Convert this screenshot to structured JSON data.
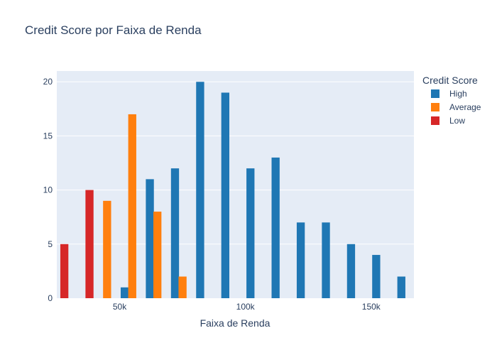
{
  "chart_data": {
    "type": "bar",
    "title": "Credit Score por Faixa de Renda",
    "xlabel": "Faixa de Renda",
    "ylabel": "",
    "legend_title": "Credit Score",
    "legend_position": "right",
    "grid": true,
    "xlim": [
      25000,
      167000
    ],
    "ylim": [
      0,
      21
    ],
    "xticks": [
      {
        "value": 50000,
        "label": "50k"
      },
      {
        "value": 100000,
        "label": "100k"
      },
      {
        "value": 150000,
        "label": "150k"
      }
    ],
    "yticks": [
      0,
      5,
      10,
      15,
      20
    ],
    "series": [
      {
        "name": "High",
        "color": "#1f77b4",
        "points": [
          {
            "x": 52000,
            "y": 1
          },
          {
            "x": 62000,
            "y": 11
          },
          {
            "x": 72000,
            "y": 12
          },
          {
            "x": 82000,
            "y": 20
          },
          {
            "x": 92000,
            "y": 19
          },
          {
            "x": 102000,
            "y": 12
          },
          {
            "x": 112000,
            "y": 13
          },
          {
            "x": 122000,
            "y": 7
          },
          {
            "x": 132000,
            "y": 7
          },
          {
            "x": 142000,
            "y": 5
          },
          {
            "x": 152000,
            "y": 4
          },
          {
            "x": 162000,
            "y": 2
          }
        ]
      },
      {
        "name": "Average",
        "color": "#ff7f0e",
        "points": [
          {
            "x": 45000,
            "y": 9
          },
          {
            "x": 55000,
            "y": 17
          },
          {
            "x": 65000,
            "y": 8
          },
          {
            "x": 75000,
            "y": 2
          }
        ]
      },
      {
        "name": "Low",
        "color": "#d62728",
        "points": [
          {
            "x": 28000,
            "y": 5
          },
          {
            "x": 38000,
            "y": 10
          }
        ]
      }
    ]
  }
}
